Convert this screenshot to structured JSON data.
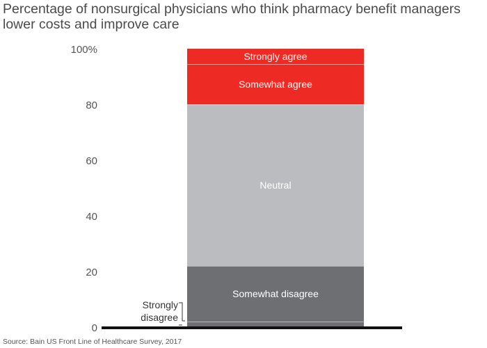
{
  "chart_data": {
    "type": "bar",
    "stacked": true,
    "title_lines": [
      "Percentage of nonsurgical physicians who think pharmacy benefit managers",
      "lower costs and improve care"
    ],
    "xlabel": "",
    "ylabel": "",
    "ylim": [
      0,
      100
    ],
    "yticks": [
      0,
      20,
      40,
      60,
      80,
      100
    ],
    "ytick_labels": [
      "0",
      "20",
      "40",
      "60",
      "80",
      "100%"
    ],
    "grid": false,
    "segments": [
      {
        "key": "strongly_disagree",
        "label_lines": [
          "Strongly",
          "disagree"
        ],
        "value": 2,
        "color": "#6e6f73",
        "label_position": "outside-left"
      },
      {
        "key": "somewhat_disagree",
        "label_lines": [
          "Somewhat disagree"
        ],
        "value": 20,
        "color": "#6e6f73",
        "label_position": "inside"
      },
      {
        "key": "neutral",
        "label_lines": [
          "Neutral"
        ],
        "value": 58,
        "color": "#bbbcbf",
        "label_position": "inside"
      },
      {
        "key": "somewhat_agree",
        "label_lines": [
          "Somewhat agree"
        ],
        "value": 14.5,
        "color": "#ee2a24",
        "label_position": "inside"
      },
      {
        "key": "strongly_agree",
        "label_lines": [
          "Strongly agree"
        ],
        "value": 5.5,
        "color": "#ee2a24",
        "label_position": "inside"
      }
    ]
  },
  "footer": {
    "source": "Source: Bain US Front Line of Healthcare Survey, 2017"
  }
}
